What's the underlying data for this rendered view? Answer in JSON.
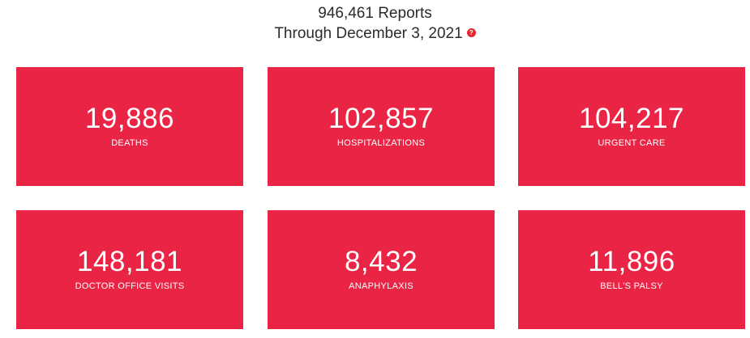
{
  "header": {
    "reports_line": "946,461 Reports",
    "through_line": "Through December 3, 2021",
    "help_icon_glyph": "?",
    "help_icon_name": "help-icon",
    "help_icon_color": "#e3262f"
  },
  "accent_color": "#ea2444",
  "stats": [
    {
      "value": "19,886",
      "label": "DEATHS"
    },
    {
      "value": "102,857",
      "label": "HOSPITALIZATIONS"
    },
    {
      "value": "104,217",
      "label": "URGENT CARE"
    },
    {
      "value": "148,181",
      "label": "DOCTOR OFFICE VISITS"
    },
    {
      "value": "8,432",
      "label": "ANAPHYLAXIS"
    },
    {
      "value": "11,896",
      "label": "BELL'S PALSY"
    }
  ]
}
